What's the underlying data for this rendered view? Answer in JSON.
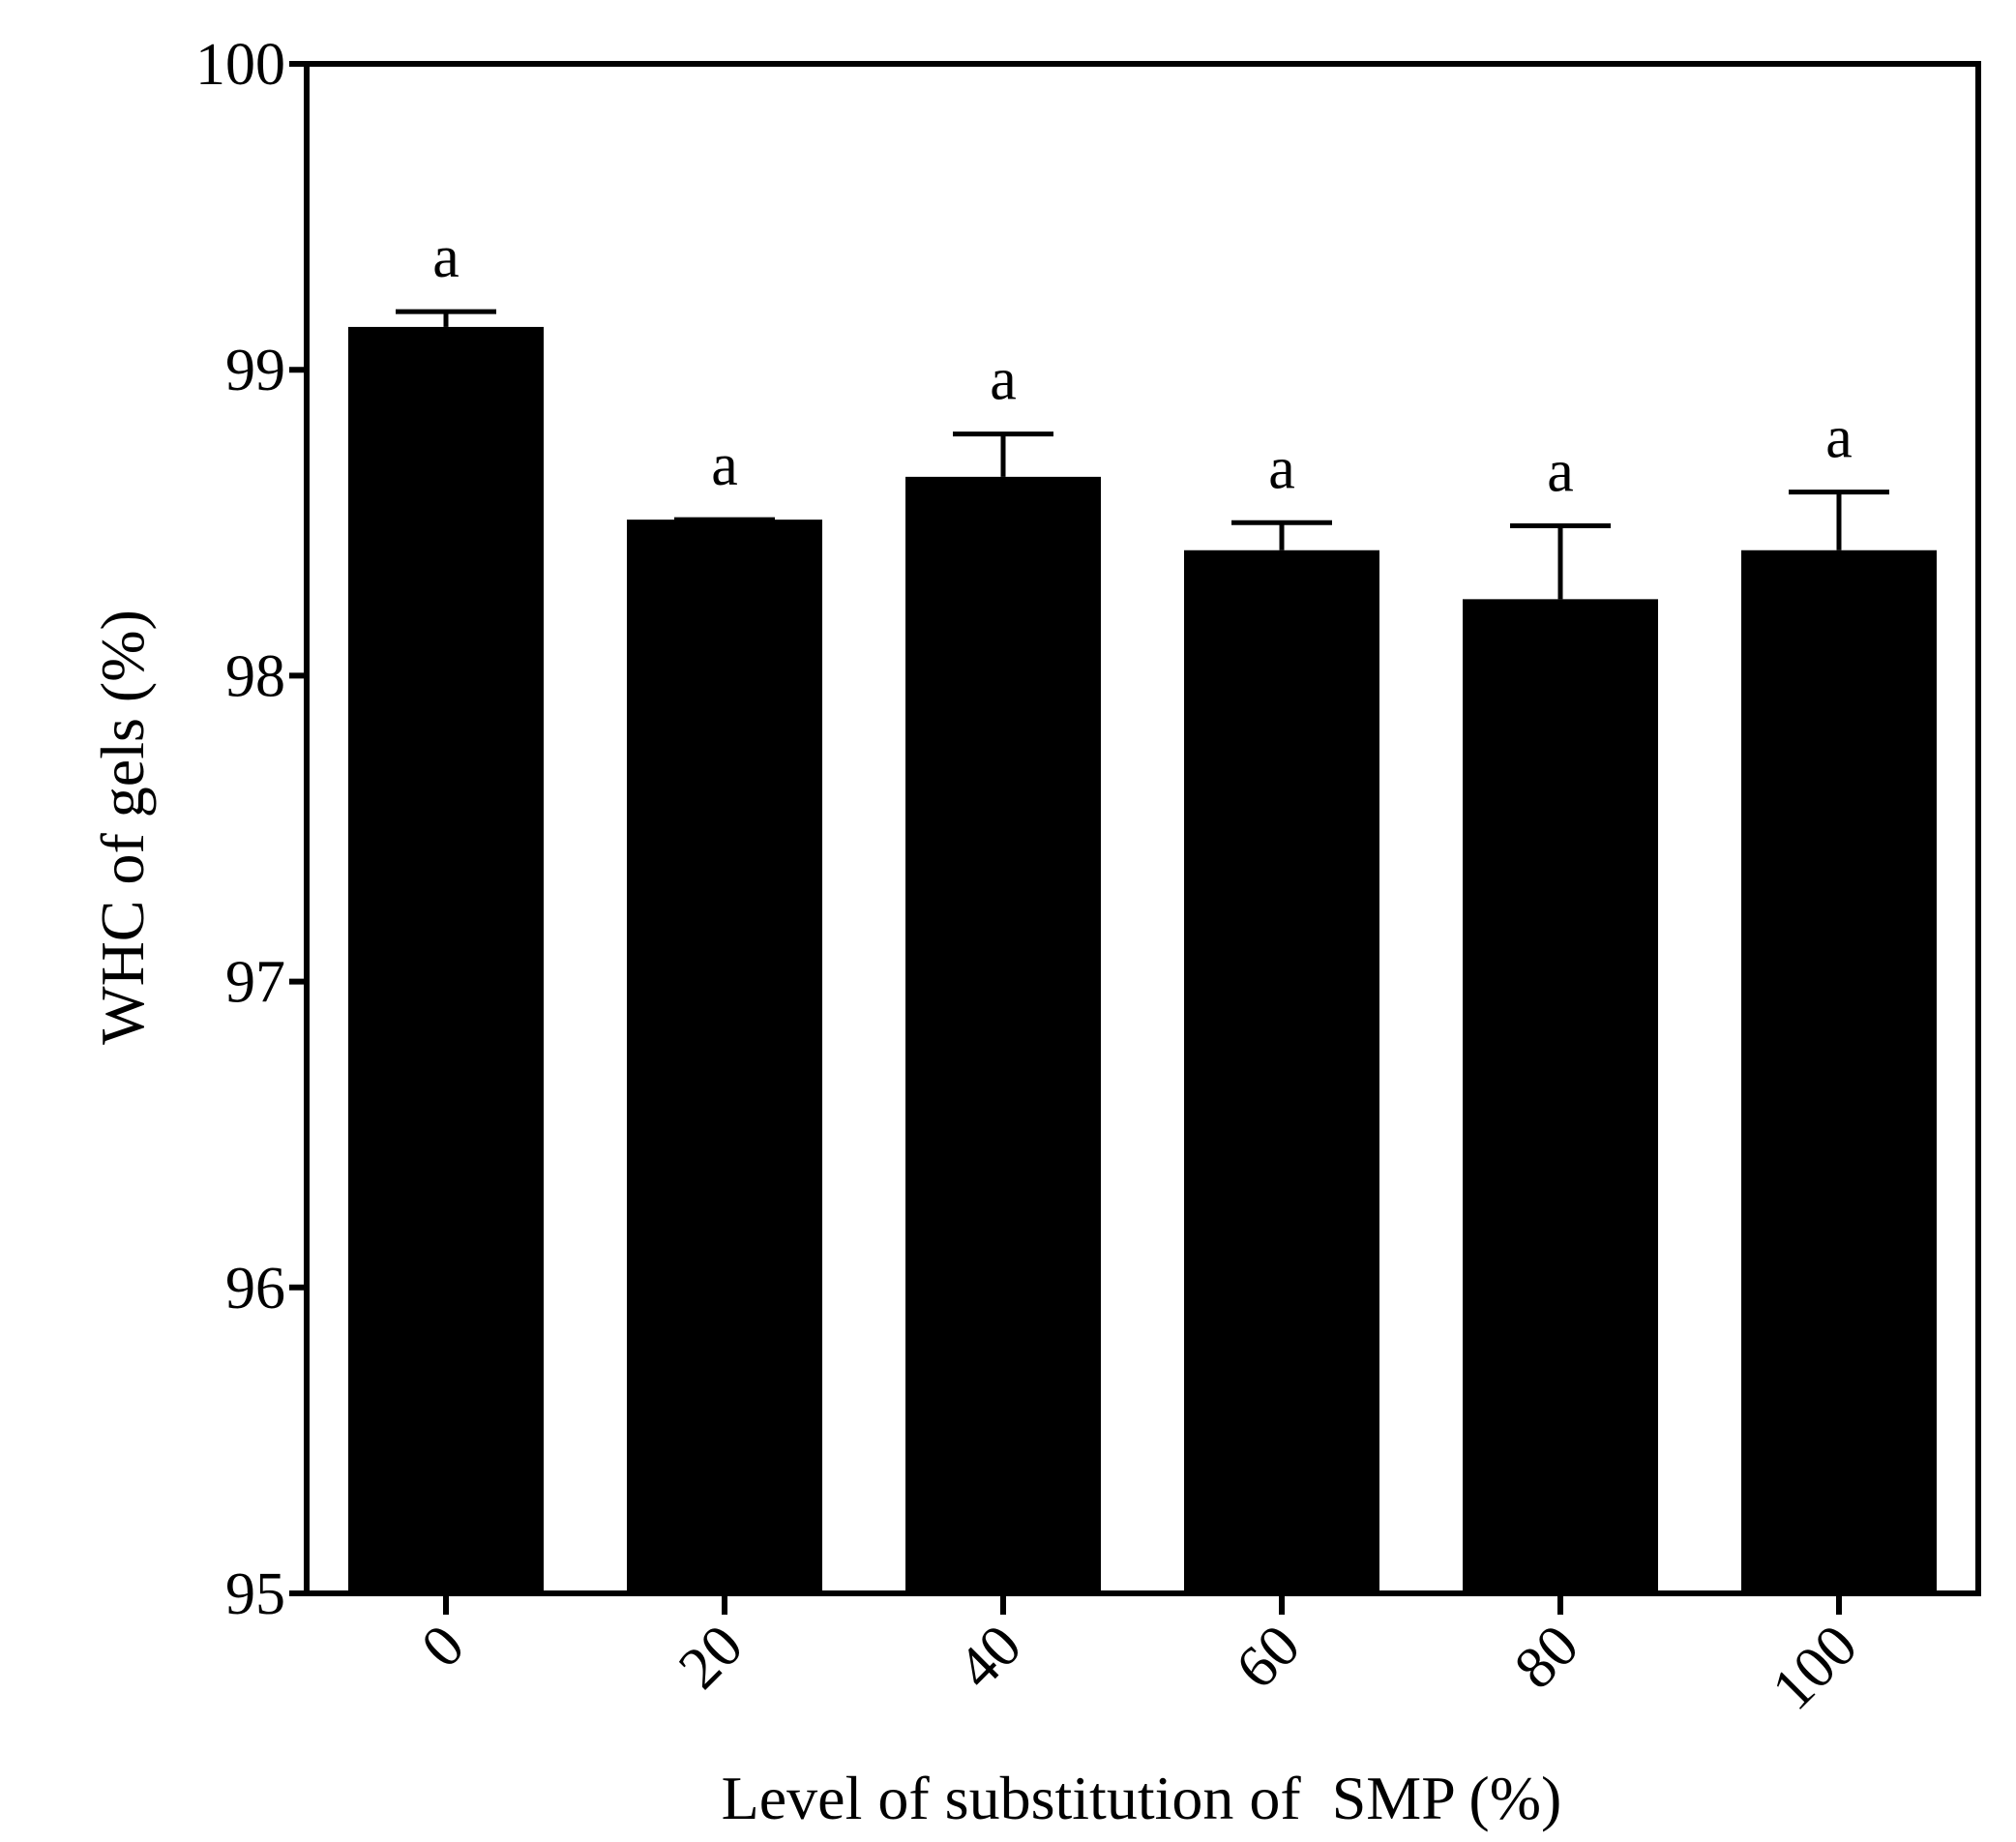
{
  "chart_data": {
    "type": "bar",
    "title": "",
    "xlabel": "Level of substitution of  SMP (%)",
    "ylabel": "WHC of gels (%)",
    "ylim": [
      95,
      100
    ],
    "yticks": [
      "95",
      "96",
      "97",
      "98",
      "99",
      "100"
    ],
    "categories": [
      "0",
      "20",
      "40",
      "60",
      "80",
      "100"
    ],
    "values": [
      99.14,
      98.51,
      98.65,
      98.41,
      98.25,
      98.41
    ],
    "errors": [
      0.05,
      0.0,
      0.14,
      0.09,
      0.24,
      0.19
    ],
    "significance": [
      "a",
      "a",
      "a",
      "a",
      "a",
      "a"
    ],
    "bar_color": "#000000",
    "grid": false,
    "legend": "none"
  }
}
